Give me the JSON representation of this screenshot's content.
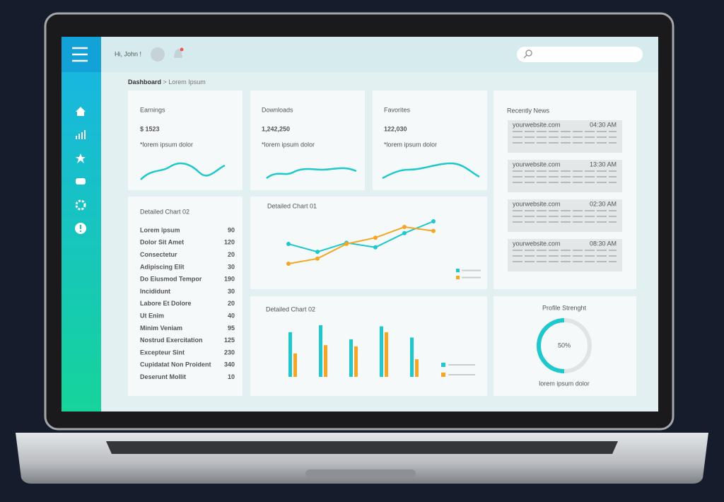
{
  "header": {
    "greeting": "Hi, John !"
  },
  "breadcrumb": {
    "current": "Dashboard",
    "trail": "> Lorem Ipsum"
  },
  "stats": [
    {
      "title": "Earnings",
      "value": "$ 1523",
      "note": "*lorem ipsum dolor"
    },
    {
      "title": "Downloads",
      "value": "1,242,250",
      "note": "*lorem ipsum dolor"
    },
    {
      "title": "Favorites",
      "value": "122,030",
      "note": "*lorem ipsum dolor"
    }
  ],
  "news": {
    "title": "Recently News",
    "items": [
      {
        "source": "yourwebsite.com",
        "time": "04:30 AM"
      },
      {
        "source": "yourwebsite.com",
        "time": "13:30 AM"
      },
      {
        "source": "yourwebsite.com",
        "time": "02:30 AM"
      },
      {
        "source": "yourwebsite.com",
        "time": "08:30 AM"
      }
    ]
  },
  "table": {
    "title": "Detailed Chart 02",
    "rows": [
      [
        "Lorem ipsum",
        90
      ],
      [
        "Dolor Sit Amet",
        120
      ],
      [
        "Consectetur",
        20
      ],
      [
        "Adipiscing Elit",
        30
      ],
      [
        "Do Eiusmod Tempor",
        190
      ],
      [
        "Incididunt",
        30
      ],
      [
        "Labore Et Dolore",
        20
      ],
      [
        "Ut Enim",
        40
      ],
      [
        "Minim Veniam",
        95
      ],
      [
        "Nostrud Exercitation",
        125
      ],
      [
        "Excepteur Sint",
        230
      ],
      [
        "Cupidatat Non Proident",
        340
      ],
      [
        "Deserunt Mollit",
        10
      ]
    ]
  },
  "line_chart": {
    "type": "line",
    "title": "Detailed Chart 01",
    "ylim": [
      0,
      100
    ],
    "series": [
      {
        "color": "#1ec8cc",
        "values": [
          50,
          36,
          52,
          44,
          69,
          90
        ]
      },
      {
        "color": "#f5a623",
        "values": [
          15,
          24,
          50,
          61,
          80,
          73
        ]
      }
    ]
  },
  "bar_chart": {
    "type": "bar",
    "title": "Detailed Chart 02",
    "ylim": [
      0,
      100
    ],
    "series": [
      {
        "color": "#1ec8cc",
        "values": [
          76,
          88,
          64,
          86,
          67
        ]
      },
      {
        "color": "#f5a623",
        "values": [
          40,
          54,
          52,
          76,
          30
        ]
      }
    ]
  },
  "profile": {
    "title": "Profile Strenght",
    "value": 50,
    "value_label": "50%",
    "note": "lorem ipsum dolor",
    "color": "#1ec8cc"
  }
}
